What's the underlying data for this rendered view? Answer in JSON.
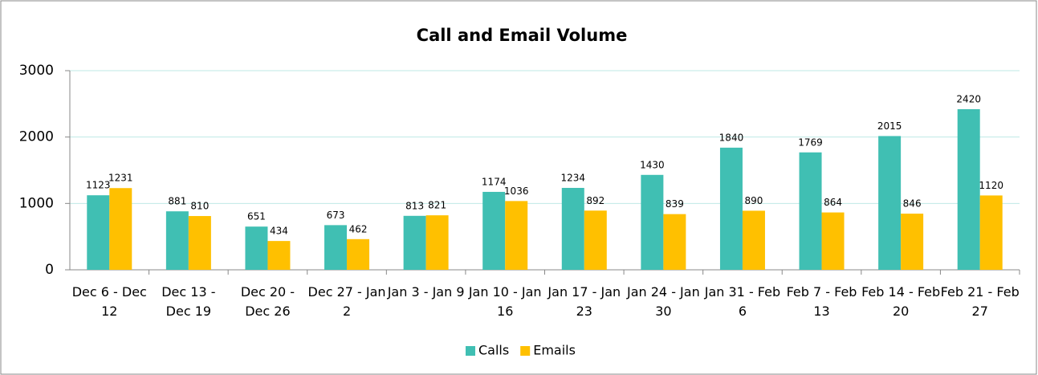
{
  "chart_data": {
    "type": "bar",
    "title": "Call and Email Volume",
    "categories": [
      "Dec 6 - Dec 12",
      "Dec 13 - Dec 19",
      "Dec 20 - Dec 26",
      "Dec 27 - Jan 2",
      "Jan 3 - Jan 9",
      "Jan 10 - Jan 16",
      "Jan 17 - Jan 23",
      "Jan 24 - Jan 30",
      "Jan 31 - Feb 6",
      "Feb 7 - Feb 13",
      "Feb 14 - Feb 20",
      "Feb 21 - Feb 27"
    ],
    "series": [
      {
        "name": "Calls",
        "color": "#40bfb3",
        "values": [
          1123,
          881,
          651,
          673,
          813,
          1174,
          1234,
          1430,
          1840,
          1769,
          2015,
          2420
        ]
      },
      {
        "name": "Emails",
        "color": "#ffc000",
        "values": [
          1231,
          810,
          434,
          462,
          821,
          1036,
          892,
          839,
          890,
          864,
          846,
          1120
        ]
      }
    ],
    "ylim": [
      0,
      3000
    ],
    "yticks": [
      0,
      1000,
      2000,
      3000
    ],
    "grid": true,
    "legend": "bottom"
  }
}
